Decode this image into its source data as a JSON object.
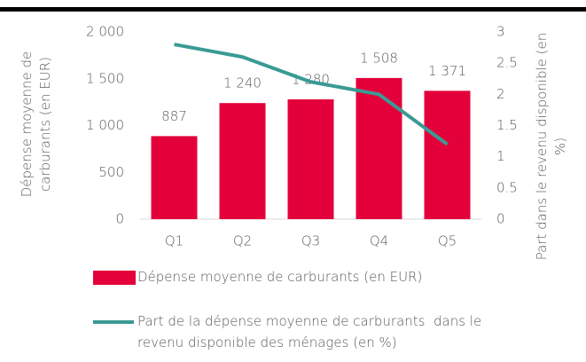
{
  "chart_data": {
    "type": "bar",
    "categories": [
      "Q1",
      "Q2",
      "Q3",
      "Q4",
      "Q5"
    ],
    "series": [
      {
        "name": "Dépense moyenne de carburants (en EUR)",
        "type": "bar",
        "color": "#e4003a",
        "values": [
          887,
          1240,
          1280,
          1508,
          1371
        ],
        "value_labels": [
          "887",
          "1 240",
          "1 280",
          "1 508",
          "1 371"
        ]
      },
      {
        "name": "Part de la dépense moyenne de carburants  dans le revenu disponible des ménages (en %)",
        "type": "line",
        "color": "#3a9a94",
        "axis": "y2",
        "values": [
          2.8,
          2.6,
          2.2,
          2.0,
          1.2
        ]
      }
    ],
    "ylabel": "Dépense moyenne de carburants (en EUR)",
    "y2label": "Part dans le revenu disponible (en %)",
    "ylim": [
      0,
      2000
    ],
    "yticks": [
      0,
      500,
      {
        "value": 1000,
        "label": "1 000"
      },
      {
        "value": 1500,
        "label": "1 500"
      },
      {
        "value": 2000,
        "label": "2 000"
      }
    ],
    "y2lim": [
      0,
      3
    ],
    "y2ticks": [
      0,
      0.5,
      1,
      1.5,
      2,
      2.5,
      3
    ],
    "grid": false
  }
}
